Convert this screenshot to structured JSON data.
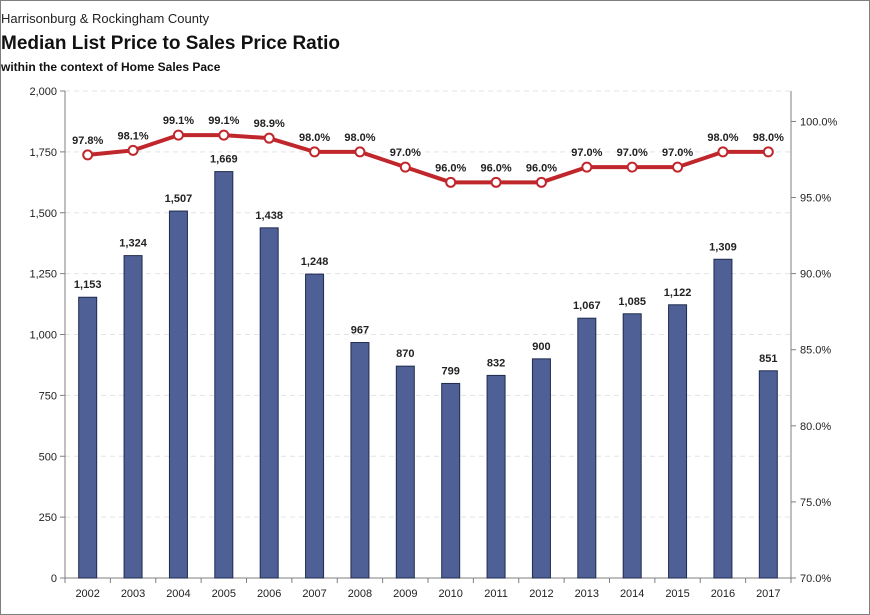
{
  "chart_data": {
    "type": "bar",
    "supertitle": "Harrisonburg & Rockingham County",
    "title": "Median List Price to Sales Price Ratio",
    "subtitle": "within the context of Home Sales Pace",
    "categories": [
      "2002",
      "2003",
      "2004",
      "2005",
      "2006",
      "2007",
      "2008",
      "2009",
      "2010",
      "2011",
      "2012",
      "2013",
      "2014",
      "2015",
      "2016",
      "2017"
    ],
    "series": [
      {
        "type": "bar",
        "axis": "left",
        "color": "#4f6096",
        "values": [
          1153,
          1324,
          1507,
          1669,
          1438,
          1248,
          967,
          870,
          799,
          832,
          900,
          1067,
          1085,
          1122,
          1309,
          851
        ],
        "labels": [
          "1,153",
          "1,324",
          "1,507",
          "1,669",
          "1,438",
          "1,248",
          "967",
          "870",
          "799",
          "832",
          "900",
          "1,067",
          "1,085",
          "1,122",
          "1,309",
          "851"
        ]
      },
      {
        "type": "line",
        "axis": "right",
        "color": "#c0272d",
        "values": [
          97.8,
          98.1,
          99.1,
          99.1,
          98.9,
          98.0,
          98.0,
          97.0,
          96.0,
          96.0,
          96.0,
          97.0,
          97.0,
          97.0,
          98.0,
          98.0
        ],
        "labels": [
          "97.8%",
          "98.1%",
          "99.1%",
          "99.1%",
          "98.9%",
          "98.0%",
          "98.0%",
          "97.0%",
          "96.0%",
          "96.0%",
          "96.0%",
          "97.0%",
          "97.0%",
          "97.0%",
          "98.0%",
          "98.0%"
        ]
      }
    ],
    "ylim_left": [
      0,
      2000
    ],
    "yticks_left": [
      "0",
      "250",
      "500",
      "750",
      "1,000",
      "1,250",
      "1,500",
      "1,750",
      "2,000"
    ],
    "ylim_right": [
      70,
      102
    ],
    "yticks_right_values": [
      70,
      75,
      80,
      85,
      90,
      95,
      100
    ],
    "yticks_right": [
      "70.0%",
      "75.0%",
      "80.0%",
      "85.0%",
      "90.0%",
      "95.0%",
      "100.0%"
    ],
    "grid": "horizontal-dashed",
    "legend": "none"
  }
}
